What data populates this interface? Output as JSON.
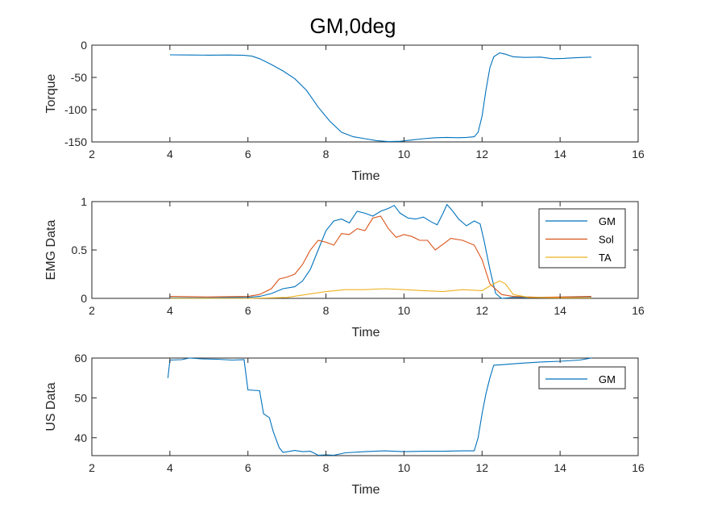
{
  "figure": {
    "title": "GM,0deg"
  },
  "chart_data": [
    {
      "type": "line",
      "xlabel": "Time",
      "ylabel": "Torque",
      "xlim": [
        2,
        16
      ],
      "ylim": [
        -150,
        0
      ],
      "xticks": [
        "2",
        "4",
        "6",
        "8",
        "10",
        "12",
        "14",
        "16"
      ],
      "yticks": [
        "0",
        "-50",
        "-100",
        "-150"
      ],
      "ytick_values": [
        0,
        -50,
        -100,
        -150
      ],
      "grid": false,
      "legend": null,
      "series": [
        {
          "color": "#0072BD",
          "points": [
            [
              4,
              -15
            ],
            [
              4.5,
              -15.3
            ],
            [
              5,
              -15.5
            ],
            [
              5.5,
              -15.2
            ],
            [
              5.9,
              -15.8
            ],
            [
              6.1,
              -17
            ],
            [
              6.3,
              -21
            ],
            [
              6.6,
              -30
            ],
            [
              6.9,
              -40
            ],
            [
              7.2,
              -52
            ],
            [
              7.5,
              -70
            ],
            [
              7.8,
              -96
            ],
            [
              8.1,
              -118
            ],
            [
              8.4,
              -135
            ],
            [
              8.7,
              -142
            ],
            [
              9,
              -145
            ],
            [
              9.3,
              -148
            ],
            [
              9.6,
              -149.5
            ],
            [
              9.9,
              -149
            ],
            [
              10.2,
              -147
            ],
            [
              10.5,
              -145
            ],
            [
              10.8,
              -143.5
            ],
            [
              11.1,
              -143
            ],
            [
              11.4,
              -143.5
            ],
            [
              11.6,
              -143
            ],
            [
              11.8,
              -142
            ],
            [
              11.9,
              -135
            ],
            [
              12.0,
              -110
            ],
            [
              12.1,
              -70
            ],
            [
              12.2,
              -35
            ],
            [
              12.3,
              -18
            ],
            [
              12.45,
              -12
            ],
            [
              12.6,
              -14
            ],
            [
              12.8,
              -18
            ],
            [
              13.1,
              -19
            ],
            [
              13.5,
              -18.5
            ],
            [
              13.8,
              -21
            ],
            [
              14.1,
              -20.5
            ],
            [
              14.4,
              -19.5
            ],
            [
              14.8,
              -18.5
            ]
          ]
        }
      ]
    },
    {
      "type": "line",
      "xlabel": "Time",
      "ylabel": "EMG Data",
      "xlim": [
        2,
        16
      ],
      "ylim": [
        0,
        1
      ],
      "xticks": [
        "2",
        "4",
        "6",
        "8",
        "10",
        "12",
        "14",
        "16"
      ],
      "yticks": [
        "1",
        "0.5",
        "0"
      ],
      "ytick_values": [
        1,
        0.5,
        0
      ],
      "grid": false,
      "legend": "top-right",
      "series": [
        {
          "name": "GM",
          "color": "#0072BD",
          "points": [
            [
              4,
              0.005
            ],
            [
              5,
              0.005
            ],
            [
              6,
              0.01
            ],
            [
              6.3,
              0.02
            ],
            [
              6.6,
              0.05
            ],
            [
              6.9,
              0.1
            ],
            [
              7.2,
              0.12
            ],
            [
              7.4,
              0.18
            ],
            [
              7.6,
              0.3
            ],
            [
              7.8,
              0.5
            ],
            [
              8.0,
              0.7
            ],
            [
              8.2,
              0.8
            ],
            [
              8.4,
              0.82
            ],
            [
              8.6,
              0.78
            ],
            [
              8.8,
              0.9
            ],
            [
              9.0,
              0.88
            ],
            [
              9.2,
              0.85
            ],
            [
              9.4,
              0.9
            ],
            [
              9.6,
              0.93
            ],
            [
              9.75,
              0.96
            ],
            [
              9.9,
              0.88
            ],
            [
              10.1,
              0.83
            ],
            [
              10.3,
              0.82
            ],
            [
              10.5,
              0.84
            ],
            [
              10.7,
              0.79
            ],
            [
              10.85,
              0.76
            ],
            [
              11.0,
              0.88
            ],
            [
              11.1,
              0.97
            ],
            [
              11.25,
              0.9
            ],
            [
              11.4,
              0.82
            ],
            [
              11.6,
              0.75
            ],
            [
              11.8,
              0.8
            ],
            [
              11.95,
              0.77
            ],
            [
              12.05,
              0.6
            ],
            [
              12.2,
              0.3
            ],
            [
              12.35,
              0.05
            ],
            [
              12.5,
              0.0
            ],
            [
              12.8,
              0.01
            ],
            [
              13.5,
              0.01
            ],
            [
              14.8,
              0.01
            ]
          ]
        },
        {
          "name": "Sol",
          "color": "#D95319",
          "points": [
            [
              4,
              0.02
            ],
            [
              5,
              0.015
            ],
            [
              6,
              0.02
            ],
            [
              6.3,
              0.04
            ],
            [
              6.6,
              0.1
            ],
            [
              6.8,
              0.2
            ],
            [
              7.0,
              0.22
            ],
            [
              7.2,
              0.25
            ],
            [
              7.4,
              0.35
            ],
            [
              7.6,
              0.5
            ],
            [
              7.8,
              0.6
            ],
            [
              8.0,
              0.58
            ],
            [
              8.2,
              0.55
            ],
            [
              8.4,
              0.67
            ],
            [
              8.6,
              0.66
            ],
            [
              8.8,
              0.72
            ],
            [
              9.0,
              0.7
            ],
            [
              9.2,
              0.83
            ],
            [
              9.4,
              0.85
            ],
            [
              9.6,
              0.72
            ],
            [
              9.8,
              0.63
            ],
            [
              10.0,
              0.66
            ],
            [
              10.2,
              0.64
            ],
            [
              10.4,
              0.6
            ],
            [
              10.6,
              0.6
            ],
            [
              10.8,
              0.5
            ],
            [
              11.0,
              0.56
            ],
            [
              11.2,
              0.62
            ],
            [
              11.5,
              0.6
            ],
            [
              11.8,
              0.55
            ],
            [
              12.0,
              0.4
            ],
            [
              12.2,
              0.15
            ],
            [
              12.5,
              0.04
            ],
            [
              12.8,
              0.02
            ],
            [
              13.5,
              0.01
            ],
            [
              14.8,
              0.02
            ]
          ]
        },
        {
          "name": "TA",
          "color": "#EDB120",
          "points": [
            [
              4,
              0.0
            ],
            [
              5,
              0.0
            ],
            [
              6,
              0.0
            ],
            [
              6.5,
              0.005
            ],
            [
              7.0,
              0.01
            ],
            [
              7.5,
              0.04
            ],
            [
              8.0,
              0.07
            ],
            [
              8.5,
              0.09
            ],
            [
              9.0,
              0.09
            ],
            [
              9.5,
              0.1
            ],
            [
              10.0,
              0.09
            ],
            [
              10.5,
              0.08
            ],
            [
              11.0,
              0.07
            ],
            [
              11.5,
              0.09
            ],
            [
              12.0,
              0.08
            ],
            [
              12.3,
              0.15
            ],
            [
              12.45,
              0.18
            ],
            [
              12.6,
              0.15
            ],
            [
              12.8,
              0.04
            ],
            [
              13.2,
              0.01
            ],
            [
              14.0,
              0.005
            ],
            [
              14.8,
              0.005
            ]
          ]
        }
      ]
    },
    {
      "type": "line",
      "xlabel": "Time",
      "ylabel": "US Data",
      "xlim": [
        2,
        16
      ],
      "ylim": [
        35.5,
        60
      ],
      "xticks": [
        "2",
        "4",
        "6",
        "8",
        "10",
        "12",
        "14",
        "16"
      ],
      "yticks": [
        "60",
        "50",
        "40"
      ],
      "ytick_values": [
        60,
        50,
        40
      ],
      "grid": false,
      "legend": "top-right",
      "series": [
        {
          "name": "GM",
          "color": "#0072BD",
          "points": [
            [
              3.95,
              55
            ],
            [
              4.0,
              59.5
            ],
            [
              4.3,
              59.6
            ],
            [
              4.5,
              60
            ],
            [
              4.8,
              59.8
            ],
            [
              5.2,
              59.7
            ],
            [
              5.6,
              59.5
            ],
            [
              5.9,
              59.6
            ],
            [
              6.0,
              52
            ],
            [
              6.3,
              51.8
            ],
            [
              6.4,
              46
            ],
            [
              6.55,
              45
            ],
            [
              6.65,
              41.5
            ],
            [
              6.8,
              37.5
            ],
            [
              6.9,
              36.3
            ],
            [
              7.2,
              36.8
            ],
            [
              7.4,
              36.5
            ],
            [
              7.6,
              36.6
            ],
            [
              7.8,
              35.6
            ],
            [
              8.0,
              35.7
            ],
            [
              8.2,
              35.6
            ],
            [
              8.5,
              36.2
            ],
            [
              9.0,
              36.5
            ],
            [
              9.5,
              36.7
            ],
            [
              10.0,
              36.5
            ],
            [
              10.5,
              36.6
            ],
            [
              11.0,
              36.6
            ],
            [
              11.5,
              36.7
            ],
            [
              11.8,
              36.7
            ],
            [
              11.9,
              40
            ],
            [
              12.0,
              46
            ],
            [
              12.1,
              51
            ],
            [
              12.2,
              55
            ],
            [
              12.3,
              58.2
            ],
            [
              12.6,
              58.4
            ],
            [
              13.0,
              58.7
            ],
            [
              13.5,
              59
            ],
            [
              14.0,
              59.2
            ],
            [
              14.5,
              59.5
            ],
            [
              14.8,
              60
            ]
          ]
        }
      ]
    }
  ]
}
